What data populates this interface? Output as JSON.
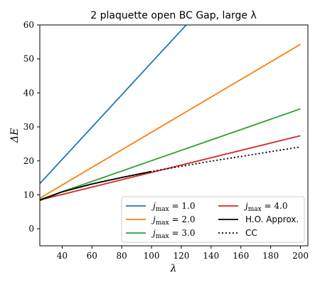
{
  "chart_data": {
    "type": "line",
    "title": "2 plaquette open BC Gap, large λ",
    "xlabel": "λ",
    "ylabel": "ΔE",
    "xlim": [
      25,
      205
    ],
    "ylim": [
      -5,
      60
    ],
    "x_ticks": [
      40,
      60,
      80,
      100,
      120,
      140,
      160,
      180,
      200
    ],
    "y_ticks": [
      0,
      10,
      20,
      30,
      40,
      50,
      60
    ],
    "x_tick_labels": [
      "40",
      "60",
      "80",
      "100",
      "120",
      "140",
      "160",
      "180",
      "200"
    ],
    "y_tick_labels": [
      "0",
      "10",
      "20",
      "30",
      "40",
      "50",
      "60"
    ],
    "grid": false,
    "legend_placement": "lower-right",
    "series": [
      {
        "name": "j_max = 1.0",
        "color": "#1f77b4",
        "style": "solid",
        "x": [
          25,
          125
        ],
        "y": [
          13.3,
          60.8
        ]
      },
      {
        "name": "j_max = 2.0",
        "color": "#ff7f0e",
        "style": "solid",
        "x": [
          25,
          200
        ],
        "y": [
          9.0,
          54.3
        ]
      },
      {
        "name": "j_max = 3.0",
        "color": "#2ca02c",
        "style": "solid",
        "x": [
          25,
          200
        ],
        "y": [
          8.6,
          35.3
        ]
      },
      {
        "name": "j_max = 4.0",
        "color": "#d62728",
        "style": "solid",
        "x": [
          25,
          200
        ],
        "y": [
          8.5,
          27.4
        ]
      },
      {
        "name": "H.O. Approx.",
        "color": "#000000",
        "style": "solid",
        "x": [
          25,
          40,
          60,
          80,
          100
        ],
        "y": [
          8.4,
          10.9,
          13.2,
          15.1,
          16.9
        ]
      },
      {
        "name": "CC",
        "color": "#000000",
        "style": "dotted",
        "x": [
          25,
          40,
          60,
          80,
          100,
          120,
          140,
          160,
          180,
          200
        ],
        "y": [
          8.4,
          10.9,
          13.2,
          15.1,
          16.9,
          18.4,
          19.9,
          21.3,
          22.7,
          24.1
        ]
      }
    ]
  }
}
